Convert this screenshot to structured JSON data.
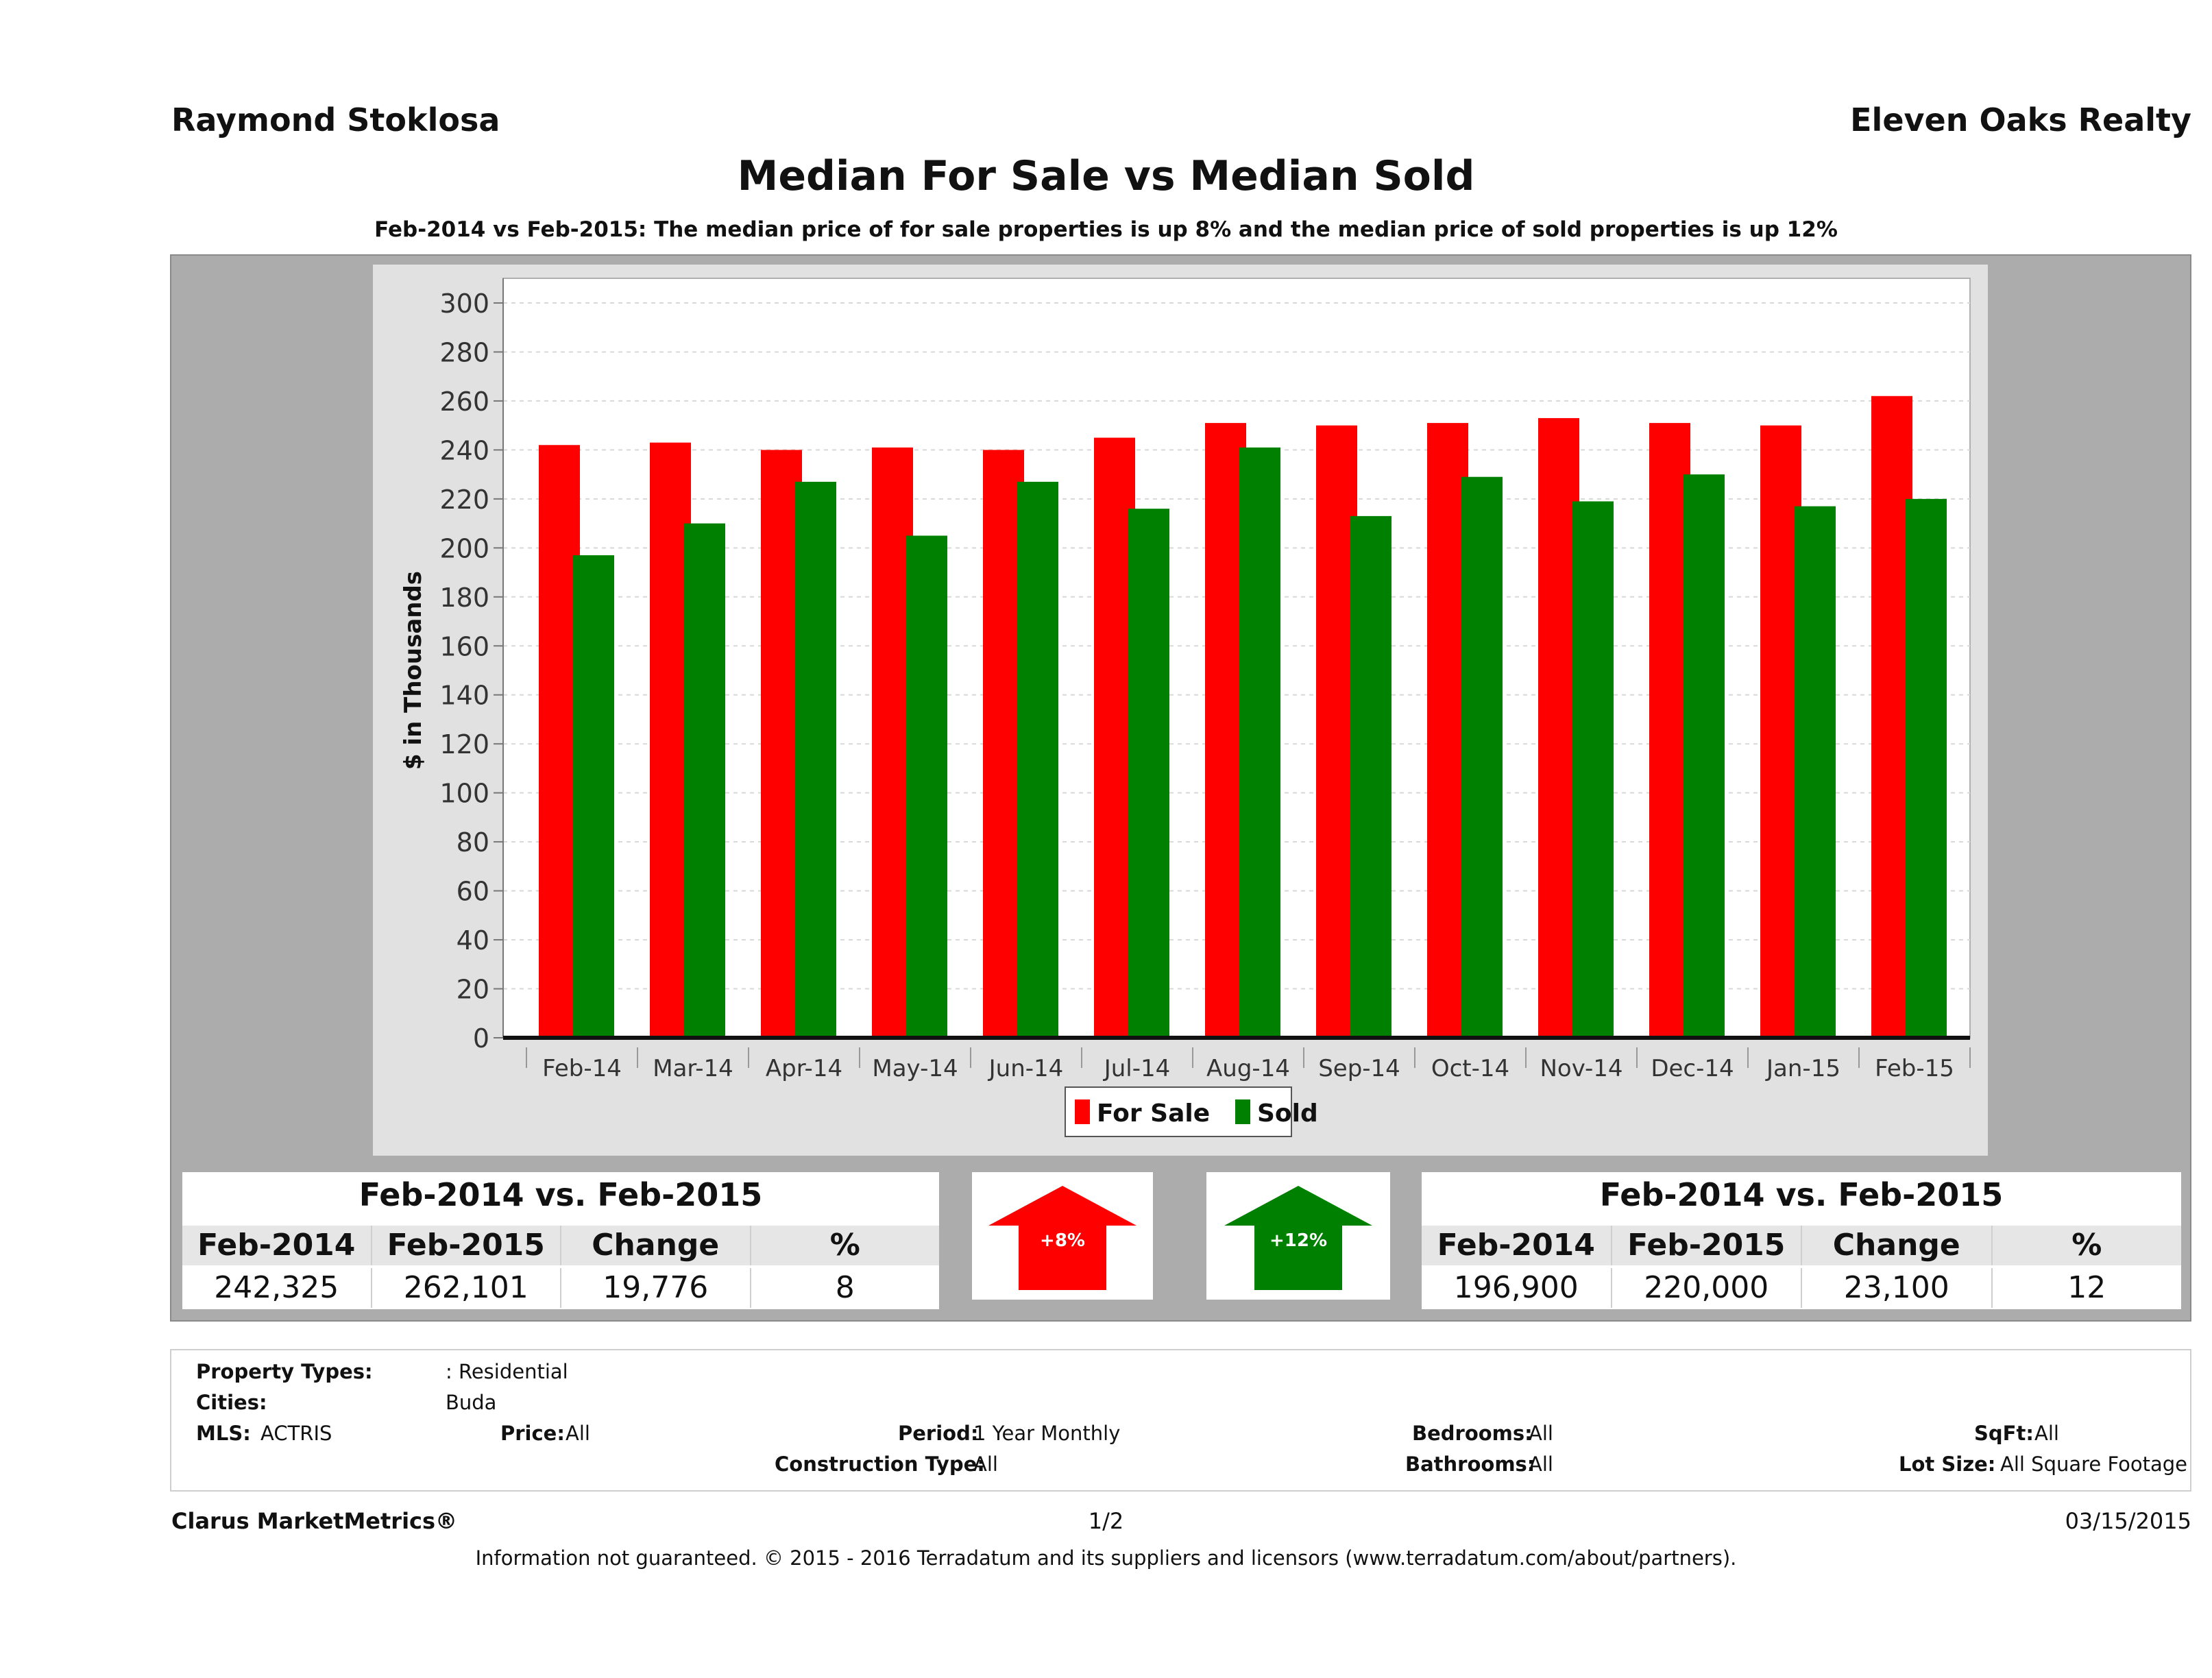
{
  "header": {
    "agent": "Raymond Stoklosa",
    "company": "Eleven Oaks Realty",
    "title": "Median For Sale vs Median Sold",
    "subtitle": "Feb-2014 vs Feb-2015: The median price of for sale properties is up 8% and the median price of sold properties is up 12%"
  },
  "chart_data": {
    "type": "bar",
    "ylabel": "$ in Thousands",
    "xlabel": "",
    "ylim": [
      0,
      300
    ],
    "yticks": [
      0,
      20,
      40,
      60,
      80,
      100,
      120,
      140,
      160,
      180,
      200,
      220,
      240,
      260,
      280,
      300
    ],
    "grid": true,
    "legend_position": "bottom",
    "categories": [
      "Feb-14",
      "Mar-14",
      "Apr-14",
      "May-14",
      "Jun-14",
      "Jul-14",
      "Aug-14",
      "Sep-14",
      "Oct-14",
      "Nov-14",
      "Dec-14",
      "Jan-15",
      "Feb-15"
    ],
    "series": [
      {
        "name": "For Sale",
        "color": "#ff0000",
        "values": [
          242,
          243,
          240,
          241,
          240,
          245,
          251,
          250,
          251,
          253,
          251,
          250,
          262
        ]
      },
      {
        "name": "Sold",
        "color": "#008000",
        "values": [
          197,
          210,
          227,
          205,
          227,
          216,
          241,
          213,
          229,
          219,
          230,
          217,
          220
        ]
      }
    ]
  },
  "stats_for_sale": {
    "heading": "Feb-2014 vs. Feb-2015",
    "columns": [
      "Feb-2014",
      "Feb-2015",
      "Change",
      "%"
    ],
    "values": [
      "242,325",
      "262,101",
      "19,776",
      "8"
    ]
  },
  "stats_sold": {
    "heading": "Feb-2014 vs. Feb-2015",
    "columns": [
      "Feb-2014",
      "Feb-2015",
      "Change",
      "%"
    ],
    "values": [
      "196,900",
      "220,000",
      "23,100",
      "12"
    ]
  },
  "arrows": {
    "for_sale_label": "+8%",
    "for_sale_color": "#ff0000",
    "sold_label": "+12%",
    "sold_color": "#008000"
  },
  "criteria": {
    "property_types_label": "Property Types:",
    "property_types_value": ": Residential",
    "cities_label": "Cities:",
    "cities_value": "Buda",
    "mls_label": "MLS:",
    "mls_value": "ACTRIS",
    "price_label": "Price:",
    "price_value": "All",
    "period_label": "Period:",
    "period_value": "1 Year Monthly",
    "bedrooms_label": "Bedrooms:",
    "bedrooms_value": "All",
    "sqft_label": "SqFt:",
    "sqft_value": "All",
    "construction_label": "Construction Type:",
    "construction_value": "All",
    "bathrooms_label": "Bathrooms:",
    "bathrooms_value": "All",
    "lot_label": "Lot Size:",
    "lot_value": "All Square Footage"
  },
  "footer": {
    "brand": "Clarus MarketMetrics®",
    "page": "1/2",
    "date": "03/15/2015",
    "disclaimer": "Information not guaranteed. © 2015 - 2016 Terradatum and its suppliers and licensors (www.terradatum.com/about/partners)."
  }
}
